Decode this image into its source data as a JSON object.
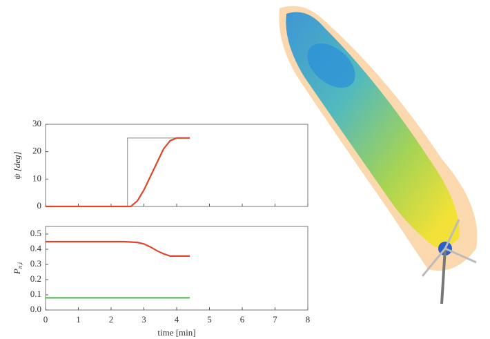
{
  "chart_data": [
    {
      "type": "line",
      "ylabel": "ψ [deg]",
      "xlim": [
        0,
        8
      ],
      "xticks": [
        0,
        1,
        2,
        3,
        4,
        5,
        6,
        7,
        8
      ],
      "ylim": [
        0,
        30
      ],
      "yticks": [
        0,
        10,
        20,
        30
      ],
      "series": [
        {
          "color": "#888888",
          "x": [
            0,
            2.5,
            2.5,
            4.4
          ],
          "values": [
            0,
            0,
            25,
            25
          ]
        },
        {
          "color": "#e0452a",
          "x": [
            0,
            2.6,
            2.8,
            3.0,
            3.2,
            3.4,
            3.6,
            3.8,
            4.0,
            4.4
          ],
          "values": [
            0,
            0,
            2,
            6,
            11,
            16,
            21,
            24,
            25,
            25
          ]
        }
      ]
    },
    {
      "type": "line",
      "ylabel": "P",
      "ylabel_subscript": "n,i",
      "xlabel": "time [min]",
      "xlim": [
        0,
        8
      ],
      "xticks": [
        0,
        1,
        2,
        3,
        4,
        5,
        6,
        7,
        8
      ],
      "ylim": [
        0,
        0.55
      ],
      "yticks": [
        {
          "value": 0,
          "label": "0.0"
        },
        0.1,
        0.2,
        0.3,
        0.4,
        0.5
      ],
      "series": [
        {
          "color": "#e0452a",
          "x": [
            0,
            2.4,
            2.8,
            3.0,
            3.2,
            3.4,
            3.6,
            3.8,
            4.4
          ],
          "values": [
            0.45,
            0.45,
            0.445,
            0.435,
            0.415,
            0.39,
            0.37,
            0.355,
            0.355
          ]
        },
        {
          "color": "#5cb85c",
          "x": [
            0,
            4.4
          ],
          "values": [
            0.08,
            0.08
          ]
        }
      ]
    }
  ]
}
